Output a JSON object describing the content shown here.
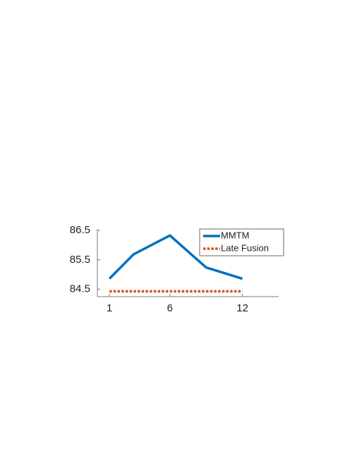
{
  "chart_data": {
    "type": "line",
    "x": [
      1,
      3,
      6,
      9,
      12
    ],
    "series": [
      {
        "name": "MMTM",
        "color": "#0072bd",
        "style": "solid",
        "values": [
          84.86,
          85.69,
          86.33,
          85.24,
          84.86
        ]
      },
      {
        "name": "Late Fusion",
        "color": "#d95319",
        "style": "dotted",
        "values": [
          84.43,
          84.43,
          84.43,
          84.43,
          84.43
        ]
      }
    ],
    "xlim": [
      0,
      15
    ],
    "xticks": [
      1,
      6,
      12
    ],
    "ylim": [
      84.25,
      86.55
    ],
    "yticks": [
      84.5,
      85.5,
      86.5
    ],
    "grid": false,
    "legend": "northeast"
  }
}
